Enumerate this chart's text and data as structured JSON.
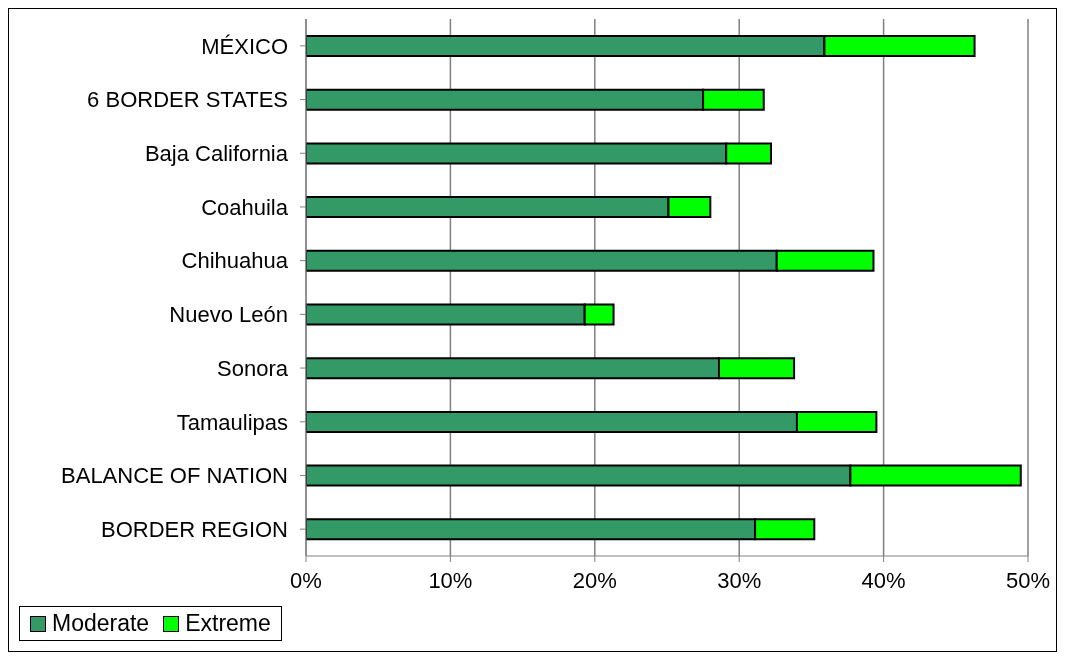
{
  "chart_data": {
    "type": "bar",
    "orientation": "horizontal",
    "stacked": true,
    "categories": [
      "MÉXICO",
      "6 BORDER STATES",
      "Baja California",
      "Coahuila",
      "Chihuahua",
      "Nuevo León",
      "Sonora",
      "Tamaulipas",
      "BALANCE OF NATION",
      "BORDER REGION"
    ],
    "series": [
      {
        "name": "Moderate",
        "color": "#339966",
        "values": [
          35.9,
          27.5,
          29.1,
          25.1,
          32.6,
          19.3,
          28.6,
          34.0,
          37.7,
          31.1
        ]
      },
      {
        "name": "Extreme",
        "color": "#00ff00",
        "values": [
          10.4,
          4.2,
          3.1,
          2.9,
          6.7,
          2.0,
          5.2,
          5.5,
          11.8,
          4.1
        ]
      }
    ],
    "xlim": [
      0,
      50
    ],
    "xticks": [
      {
        "value": 0,
        "label": "0%"
      },
      {
        "value": 10,
        "label": "10%"
      },
      {
        "value": 20,
        "label": "20%"
      },
      {
        "value": 30,
        "label": "30%"
      },
      {
        "value": 40,
        "label": "40%"
      },
      {
        "value": 50,
        "label": "50%"
      }
    ],
    "grid": "x",
    "legend": "bottom"
  }
}
